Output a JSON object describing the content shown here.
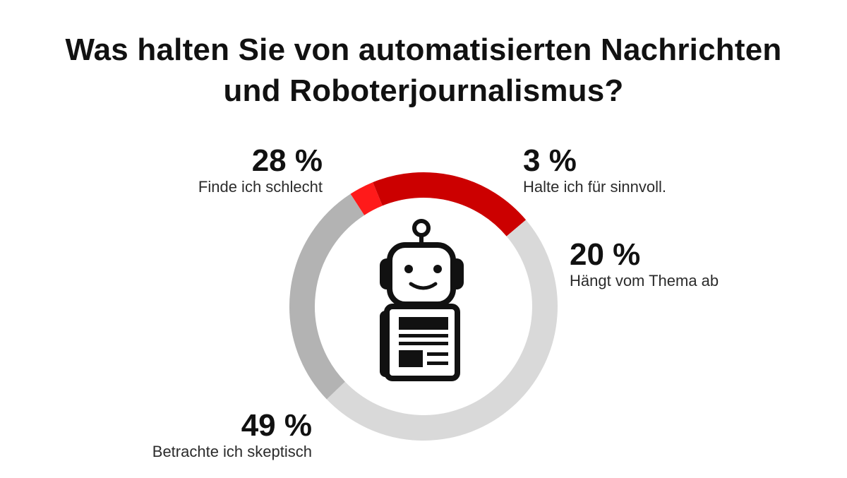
{
  "title": {
    "line1": "Was halten Sie von automatisierten Nachrichten",
    "line2": "und Roboterjournalismus?"
  },
  "chart_data": {
    "type": "pie",
    "variant": "donut",
    "title": "Was halten Sie von automatisierten Nachrichten und Roboterjournalismus?",
    "unit": "%",
    "slices": [
      {
        "label": "Halte ich für sinnvoll.",
        "value": 3,
        "value_label": "3 %",
        "color": "#ff1a1a"
      },
      {
        "label": "Hängt vom Thema ab",
        "value": 20,
        "value_label": "20 %",
        "color": "#cc0000"
      },
      {
        "label": "Betrachte ich skeptisch",
        "value": 49,
        "value_label": "49 %",
        "color": "#d9d9d9"
      },
      {
        "label": "Finde ich schlecht",
        "value": 28,
        "value_label": "28 %",
        "color": "#b3b3b3"
      }
    ],
    "center_icon": "robot-reading-newspaper-icon"
  }
}
